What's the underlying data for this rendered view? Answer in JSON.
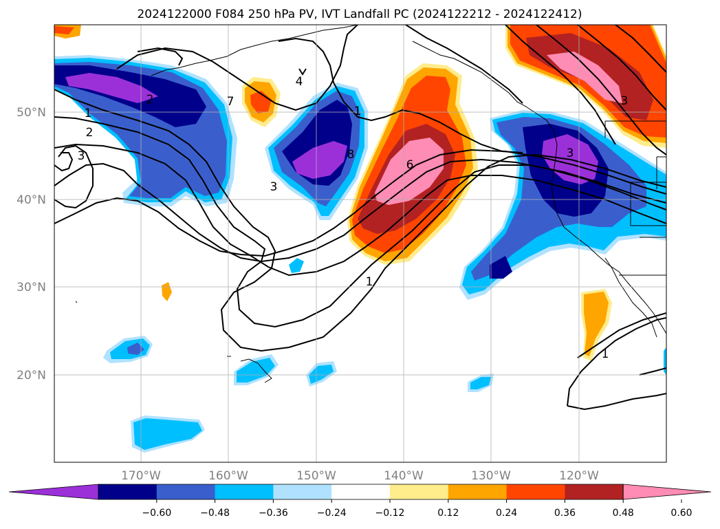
{
  "title": "2024122000 F084 250 hPa PV, IVT Landfall PC (2024122212 - 2024122412)",
  "lat_labels": [
    "50°N",
    "40°N",
    "30°N",
    "20°N"
  ],
  "lon_labels": [
    "170°W",
    "160°W",
    "150°W",
    "140°W",
    "130°W",
    "120°W"
  ],
  "colorbar": {
    "ticks": [
      "−0.60",
      "−0.48",
      "−0.36",
      "−0.24",
      "−0.12",
      "0.12",
      "0.24",
      "0.36",
      "0.48",
      "0.60"
    ],
    "colors": [
      "#9b30d9",
      "#00008b",
      "#3a5fcd",
      "#00bfff",
      "#b0e2ff",
      "#ffffff",
      "#ffec8b",
      "#ffa500",
      "#ff4500",
      "#b22222",
      "#ff8cb4"
    ]
  },
  "contour_labels": [
    "1",
    "2",
    "3",
    "4",
    "7",
    "8",
    "6",
    "1",
    "3",
    "1",
    "2",
    "1",
    "3",
    "3"
  ],
  "colors": {
    "grid": "#b0b0b0",
    "coast": "#000000",
    "contour": "#000000"
  }
}
